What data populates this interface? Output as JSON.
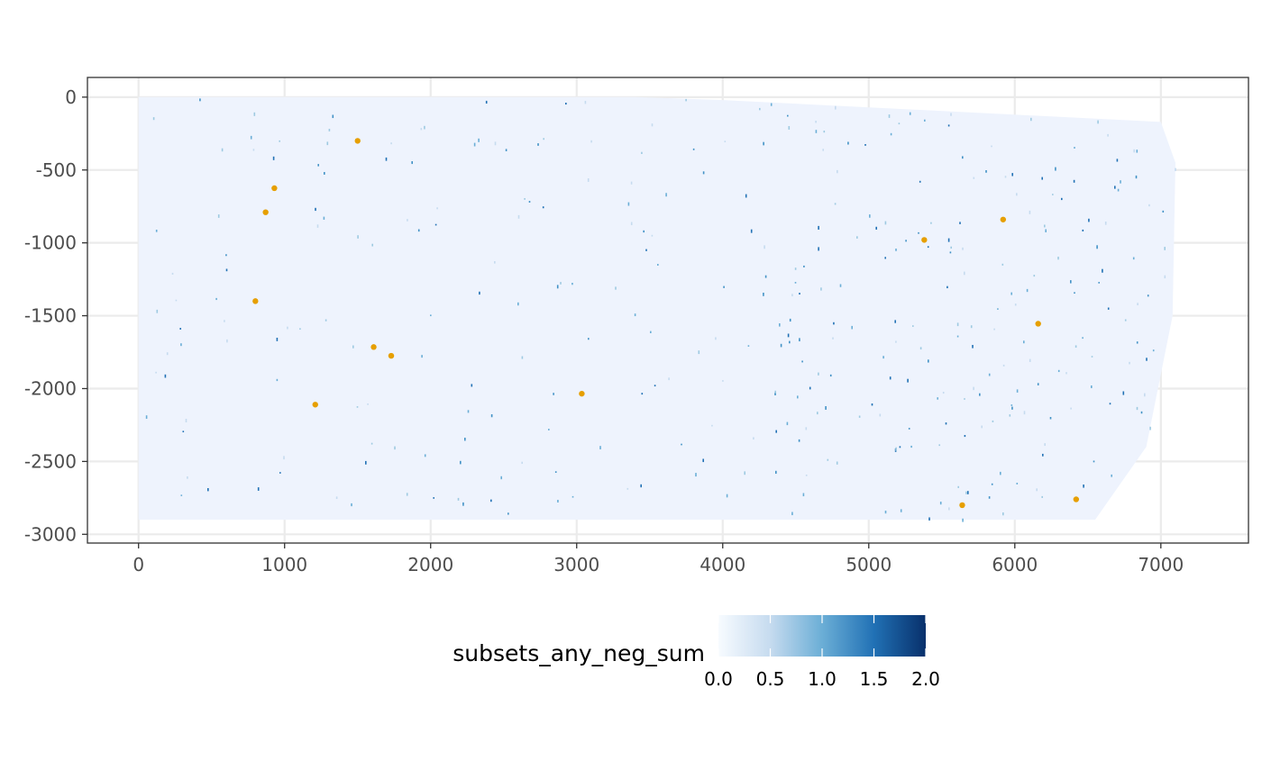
{
  "chart_data": {
    "type": "scatter",
    "title": "",
    "xlabel": "",
    "ylabel": "",
    "xlim": [
      -350,
      7600
    ],
    "ylim": [
      -3060,
      135
    ],
    "x_ticks": [
      0,
      1000,
      2000,
      3000,
      4000,
      5000,
      6000,
      7000
    ],
    "x_tick_labels": [
      "0",
      "1000",
      "2000",
      "3000",
      "4000",
      "5000",
      "6000",
      "7000"
    ],
    "y_ticks": [
      0,
      -500,
      -1000,
      -1500,
      -2000,
      -2500,
      -3000
    ],
    "y_tick_labels": [
      "0",
      "-500",
      "-1000",
      "-1500",
      "-2000",
      "-2500",
      "-3000"
    ],
    "grid": true,
    "background_tissue": {
      "description_free": true,
      "outline": [
        [
          0,
          0
        ],
        [
          3400,
          0
        ],
        [
          4000,
          -20
        ],
        [
          7000,
          -170
        ],
        [
          7100,
          -450
        ],
        [
          7080,
          -1500
        ],
        [
          6900,
          -2400
        ],
        [
          6550,
          -2900
        ],
        [
          0,
          -2900
        ]
      ],
      "value": 0.0,
      "color": "#eef3fd"
    },
    "series": [
      {
        "name": "",
        "color": "#e69f00",
        "points": [
          {
            "x": 1500,
            "y": -300
          },
          {
            "x": 930,
            "y": -625
          },
          {
            "x": 870,
            "y": -790
          },
          {
            "x": 800,
            "y": -1400
          },
          {
            "x": 1610,
            "y": -1715
          },
          {
            "x": 1730,
            "y": -1775
          },
          {
            "x": 1210,
            "y": -2110
          },
          {
            "x": 3035,
            "y": -2035
          },
          {
            "x": 5380,
            "y": -980
          },
          {
            "x": 5920,
            "y": -840
          },
          {
            "x": 6160,
            "y": -1555
          },
          {
            "x": 5640,
            "y": -2800
          },
          {
            "x": 6420,
            "y": -2760
          }
        ]
      }
    ],
    "legend": {
      "title": "subsets_any_neg_sum",
      "position": "bottom",
      "type": "colorbar",
      "min": 0.0,
      "max": 2.0,
      "breaks": [
        0.0,
        0.5,
        1.0,
        1.5,
        2.0
      ],
      "break_labels": [
        "0.0",
        "0.5",
        "1.0",
        "1.5",
        "2.0"
      ],
      "colors": [
        "#f7fbff",
        "#c6dbef",
        "#6baed6",
        "#2171b5",
        "#08306b"
      ]
    },
    "colors": {
      "panel_border": "#333333",
      "grid": "#ebebeb",
      "tick_text": "#4d4d4d"
    }
  }
}
